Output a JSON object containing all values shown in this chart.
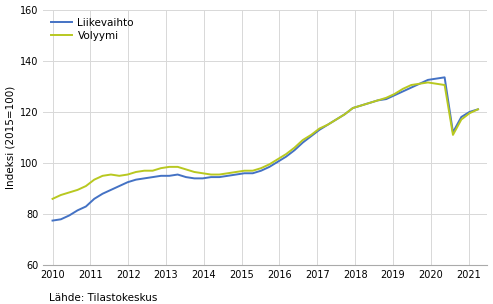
{
  "ylabel": "Indeksi (2015=100)",
  "source": "Lähde: Tilastokeskus",
  "legend_liikevaihto": "Liikevaihto",
  "legend_volyymi": "Volyymi",
  "color_liikevaihto": "#4472c4",
  "color_volyymi": "#b8c820",
  "ylim": [
    60,
    160
  ],
  "yticks": [
    60,
    80,
    100,
    120,
    140,
    160
  ],
  "background_color": "#ffffff",
  "grid_color": "#d8d8d8",
  "linewidth": 1.4,
  "liikevaihto": [
    77.5,
    78.0,
    79.5,
    81.5,
    83.0,
    86.0,
    88.0,
    89.5,
    91.0,
    92.5,
    93.5,
    94.0,
    94.5,
    95.0,
    95.0,
    95.5,
    94.5,
    94.0,
    94.0,
    94.5,
    94.5,
    95.0,
    95.5,
    96.0,
    96.0,
    97.0,
    98.5,
    100.5,
    102.5,
    105.0,
    108.0,
    110.5,
    113.0,
    115.0,
    117.0,
    119.0,
    121.5,
    122.5,
    123.5,
    124.5,
    125.0,
    126.5,
    128.0,
    129.5,
    131.0,
    132.5,
    133.0,
    133.5,
    112.0,
    118.0,
    120.0,
    121.0
  ],
  "volyymi": [
    86.0,
    87.5,
    88.5,
    89.5,
    91.0,
    93.5,
    95.0,
    95.5,
    95.0,
    95.5,
    96.5,
    97.0,
    97.0,
    98.0,
    98.5,
    98.5,
    97.5,
    96.5,
    96.0,
    95.5,
    95.5,
    96.0,
    96.5,
    97.0,
    97.0,
    98.0,
    99.5,
    101.5,
    103.5,
    106.0,
    109.0,
    111.0,
    113.5,
    115.0,
    117.0,
    119.0,
    121.5,
    122.5,
    123.5,
    124.5,
    125.5,
    127.0,
    129.0,
    130.5,
    131.0,
    131.5,
    131.0,
    130.5,
    111.0,
    117.0,
    119.5,
    121.0
  ],
  "xticks": [
    2010,
    2011,
    2012,
    2013,
    2014,
    2015,
    2016,
    2017,
    2018,
    2019,
    2020,
    2021
  ],
  "xlim": [
    2009.75,
    2021.5
  ]
}
